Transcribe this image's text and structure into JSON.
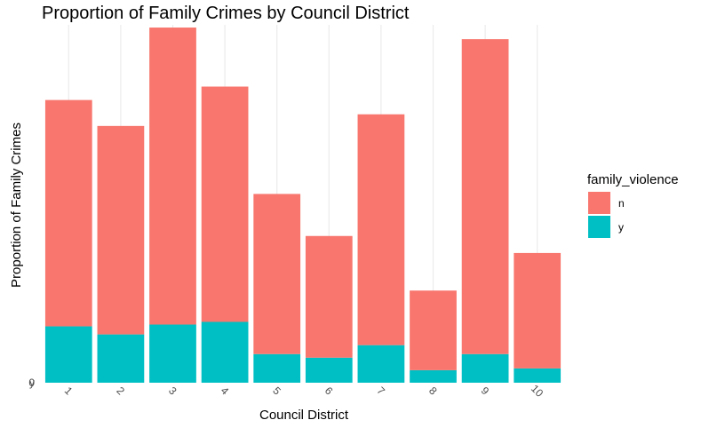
{
  "chart_data": {
    "type": "bar",
    "stacked": true,
    "title": "Proportion of Family Crimes by Council District",
    "xlabel": "Council District",
    "ylabel": "Proportion of Family Crimes",
    "categories": [
      "1",
      "2",
      "3",
      "4",
      "5",
      "6",
      "7",
      "8",
      "9",
      "10"
    ],
    "series": [
      {
        "name": "y",
        "color": "#00BFC4",
        "values": [
          63,
          54,
          65,
          68,
          32,
          28,
          42,
          14,
          32,
          16
        ]
      },
      {
        "name": "n",
        "color": "#F8766D",
        "values": [
          253,
          233,
          332,
          263,
          179,
          136,
          258,
          89,
          352,
          129
        ]
      }
    ],
    "y_tick_labels": [
      "0",
      "y"
    ],
    "ylim": [
      0,
      400
    ],
    "grid": "vertical major only",
    "legend": {
      "title": "family_violence",
      "position": "right"
    }
  }
}
